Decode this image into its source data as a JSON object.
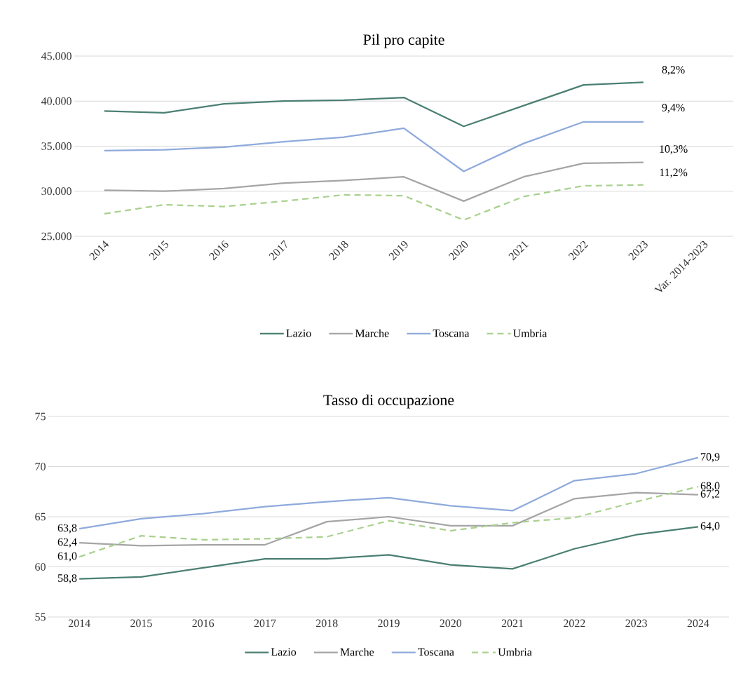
{
  "chart_data": [
    {
      "type": "line",
      "title": "Pil pro capite",
      "categories": [
        "2014",
        "2015",
        "2016",
        "2017",
        "2018",
        "2019",
        "2020",
        "2021",
        "2022",
        "2023",
        "Var. 2014-2023"
      ],
      "series": [
        {
          "name": "Lazio",
          "color": "#4a7f72",
          "line_style": "solid",
          "values": [
            38900,
            38700,
            39700,
            40000,
            40100,
            40400,
            37200,
            39500,
            41800,
            42100,
            null
          ]
        },
        {
          "name": "Marche",
          "color": "#a5a5a5",
          "line_style": "solid",
          "values": [
            30100,
            30000,
            30300,
            30900,
            31200,
            31600,
            28900,
            31600,
            33100,
            33200,
            null
          ]
        },
        {
          "name": "Toscana",
          "color": "#8faadc",
          "line_style": "solid",
          "values": [
            34500,
            34600,
            34900,
            35500,
            36000,
            37000,
            32200,
            35300,
            37700,
            37700,
            null
          ]
        },
        {
          "name": "Umbria",
          "color": "#a9d18e",
          "line_style": "dashed",
          "values": [
            27500,
            28500,
            28300,
            28900,
            29600,
            29500,
            26800,
            29400,
            30600,
            30700,
            null
          ]
        }
      ],
      "ylim": [
        25000,
        45000
      ],
      "yticks": [
        {
          "value": 25000,
          "label": "25.000"
        },
        {
          "value": 30000,
          "label": "30.000"
        },
        {
          "value": 35000,
          "label": "35.000"
        },
        {
          "value": 40000,
          "label": "40.000"
        },
        {
          "value": 45000,
          "label": "45.000"
        }
      ],
      "grid": "y",
      "legend": "bottom",
      "annotations": [
        "8,2%",
        "9,4%",
        "10,3%",
        "11,2%"
      ]
    },
    {
      "type": "line",
      "title": "Tasso di occupazione",
      "categories": [
        "2014",
        "2015",
        "2016",
        "2017",
        "2018",
        "2019",
        "2020",
        "2021",
        "2022",
        "2023",
        "2024"
      ],
      "series": [
        {
          "name": "Lazio",
          "color": "#4a7f72",
          "line_style": "solid",
          "values": [
            58.8,
            59.0,
            59.9,
            60.8,
            60.8,
            61.2,
            60.2,
            59.8,
            61.8,
            63.2,
            64.0
          ],
          "value_labels": [
            "58,8",
            null,
            null,
            null,
            null,
            null,
            null,
            null,
            null,
            null,
            "64,0"
          ]
        },
        {
          "name": "Marche",
          "color": "#a5a5a5",
          "line_style": "solid",
          "values": [
            62.4,
            62.1,
            62.2,
            62.2,
            64.5,
            65.0,
            64.1,
            64.1,
            66.8,
            67.4,
            67.2
          ],
          "value_labels": [
            "62,4",
            null,
            null,
            null,
            null,
            null,
            null,
            null,
            null,
            null,
            "67,2"
          ]
        },
        {
          "name": "Toscana",
          "color": "#8faadc",
          "line_style": "solid",
          "values": [
            63.8,
            64.8,
            65.3,
            66.0,
            66.5,
            66.9,
            66.1,
            65.6,
            68.6,
            69.3,
            70.9
          ],
          "value_labels": [
            "63,8",
            null,
            null,
            null,
            null,
            null,
            null,
            null,
            null,
            null,
            "70,9"
          ]
        },
        {
          "name": "Umbria",
          "color": "#a9d18e",
          "line_style": "dashed",
          "values": [
            61.0,
            63.1,
            62.7,
            62.8,
            63.0,
            64.6,
            63.6,
            64.4,
            64.9,
            66.5,
            68.0
          ],
          "value_labels": [
            "61,0",
            null,
            null,
            null,
            null,
            null,
            null,
            null,
            null,
            null,
            "68,0"
          ]
        }
      ],
      "ylim": [
        55,
        75
      ],
      "yticks": [
        55,
        60,
        65,
        70,
        75
      ],
      "grid": "y",
      "legend": "bottom"
    }
  ]
}
